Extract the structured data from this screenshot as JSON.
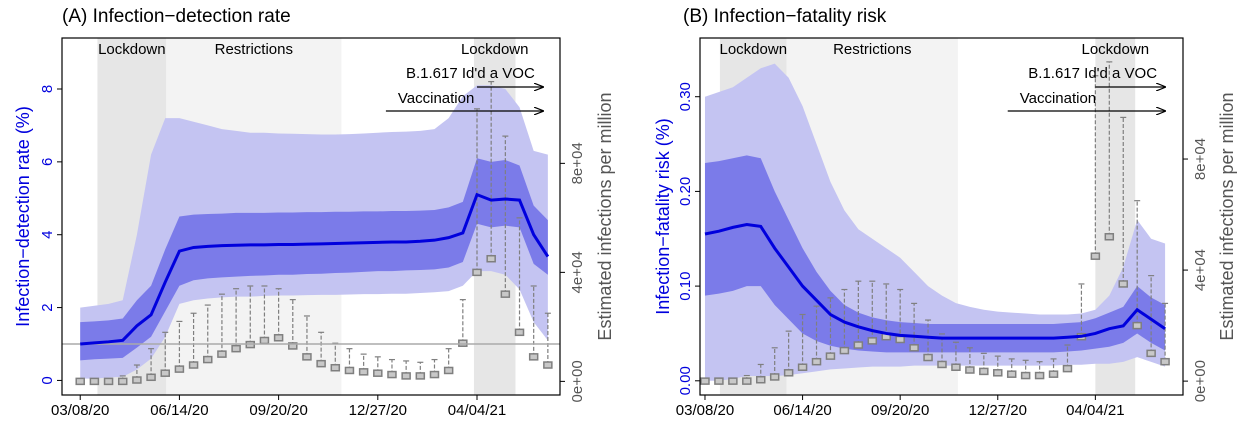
{
  "chart_data": [
    {
      "type": "line",
      "title": "(A) Infection−detection rate",
      "ylabel": "Infection−detection rate (%)",
      "y2label": "Estimated infections per million",
      "xlim": [
        "02/19/20",
        "06/25/21"
      ],
      "xticks": [
        "03/08/20",
        "06/14/20",
        "09/20/20",
        "12/27/20",
        "04/04/21"
      ],
      "ylim": [
        -0.4,
        9.4
      ],
      "yticks": [
        0,
        2,
        4,
        6,
        8
      ],
      "y2lim": [
        -5000,
        126000
      ],
      "y2ticks": [
        {
          "value": 0,
          "label": "0e+00"
        },
        {
          "value": 40000,
          "label": "4e+04"
        },
        {
          "value": 80000,
          "label": "8e+04"
        }
      ],
      "reference_line": 1,
      "periods": [
        {
          "label": "Lockdown",
          "start": "03/25/20",
          "end": "06/01/20",
          "shade": "#e6e6e6"
        },
        {
          "label": "Restrictions",
          "start": "06/01/20",
          "end": "11/21/20",
          "shade": "#f3f3f3"
        },
        {
          "label": "Lockdown",
          "start": "04/01/21",
          "end": "05/12/21",
          "shade": "#e6e6e6"
        }
      ],
      "arrows": [
        {
          "label": "B.1.617 Id'd a VOC",
          "start": "04/04/21",
          "end": "06/08/21"
        },
        {
          "label": "Vaccination",
          "start": "01/04/21",
          "end": "06/08/21"
        }
      ],
      "x": [
        "03/08/20",
        "03/22/20",
        "04/05/20",
        "04/19/20",
        "05/03/20",
        "05/17/20",
        "05/31/20",
        "06/14/20",
        "06/28/20",
        "07/12/20",
        "07/26/20",
        "08/09/20",
        "08/23/20",
        "09/06/20",
        "09/20/20",
        "10/04/20",
        "10/18/20",
        "11/01/20",
        "11/15/20",
        "11/29/20",
        "12/13/20",
        "12/27/20",
        "01/10/21",
        "01/24/21",
        "02/07/21",
        "02/21/21",
        "03/07/21",
        "03/21/21",
        "04/04/21",
        "04/18/21",
        "05/02/21",
        "05/16/21",
        "05/30/21",
        "06/13/21"
      ],
      "bands": [
        {
          "color": "#c4c4f2",
          "lower": [
            0.05,
            0.05,
            0.08,
            0.1,
            0.3,
            0.6,
            1.2,
            2.1,
            2.2,
            2.25,
            2.28,
            2.3,
            2.3,
            2.32,
            2.33,
            2.33,
            2.34,
            2.35,
            2.35,
            2.36,
            2.37,
            2.37,
            2.38,
            2.38,
            2.4,
            2.42,
            2.45,
            2.6,
            3.0,
            3.0,
            2.9,
            2.5,
            1.6,
            1.1
          ],
          "upper": [
            2.0,
            2.05,
            2.1,
            2.2,
            4.0,
            6.2,
            7.2,
            7.2,
            7.1,
            7.0,
            6.9,
            6.85,
            6.8,
            6.8,
            6.78,
            6.77,
            6.76,
            6.75,
            6.75,
            6.76,
            6.78,
            6.8,
            6.82,
            6.83,
            6.85,
            6.9,
            7.2,
            7.8,
            8.1,
            8.1,
            8.0,
            7.5,
            6.3,
            6.2
          ]
        },
        {
          "color": "#7b7be9",
          "lower": [
            0.55,
            0.58,
            0.6,
            0.62,
            0.9,
            1.2,
            1.9,
            2.6,
            2.75,
            2.8,
            2.83,
            2.85,
            2.87,
            2.88,
            2.9,
            2.9,
            2.92,
            2.93,
            2.95,
            2.96,
            2.98,
            3.0,
            3.0,
            3.02,
            3.03,
            3.05,
            3.1,
            3.25,
            4.3,
            4.2,
            4.25,
            4.2,
            3.2,
            2.9
          ],
          "upper": [
            1.6,
            1.62,
            1.65,
            1.7,
            2.2,
            2.6,
            3.6,
            4.5,
            4.55,
            4.57,
            4.58,
            4.6,
            4.6,
            4.6,
            4.61,
            4.61,
            4.62,
            4.62,
            4.63,
            4.63,
            4.64,
            4.64,
            4.65,
            4.65,
            4.66,
            4.68,
            4.75,
            4.9,
            6.1,
            6.0,
            6.05,
            5.9,
            4.8,
            4.4
          ]
        }
      ],
      "series": [
        {
          "color": "#0000dd",
          "values": [
            1.0,
            1.03,
            1.06,
            1.1,
            1.5,
            1.8,
            2.7,
            3.55,
            3.65,
            3.68,
            3.7,
            3.71,
            3.72,
            3.72,
            3.73,
            3.73,
            3.74,
            3.75,
            3.76,
            3.77,
            3.78,
            3.79,
            3.8,
            3.8,
            3.82,
            3.85,
            3.92,
            4.05,
            5.1,
            4.95,
            4.98,
            4.95,
            4.0,
            3.4
          ]
        }
      ],
      "boxes": {
        "axis": "y2",
        "color": "#7f7f7f",
        "median": [
          0,
          0,
          0,
          0,
          500,
          1500,
          3000,
          4500,
          6000,
          8000,
          10000,
          12000,
          13500,
          15000,
          16000,
          13000,
          9000,
          6500,
          5000,
          4000,
          3500,
          3000,
          2500,
          2000,
          2000,
          2500,
          4000,
          14000,
          40000,
          45000,
          32000,
          18000,
          9000,
          6000
        ],
        "upper": [
          0,
          200,
          600,
          2000,
          6000,
          12000,
          18000,
          22000,
          25000,
          28000,
          32000,
          34000,
          35000,
          35000,
          34000,
          30000,
          24000,
          18000,
          14000,
          12000,
          10000,
          9000,
          8000,
          7500,
          7000,
          8000,
          12000,
          30000,
          100000,
          110000,
          90000,
          60000,
          35000,
          25000
        ]
      }
    },
    {
      "type": "line",
      "title": "(B) Infection−fatality risk",
      "ylabel": "Infection−fatality risk (%)",
      "y2label": "Estimated infections per million",
      "xlim": [
        "03/03/20",
        "07/01/21"
      ],
      "xticks": [
        "03/08/20",
        "06/14/20",
        "09/20/20",
        "12/27/20",
        "04/04/21"
      ],
      "ylim": [
        -0.015,
        0.362
      ],
      "yticks": [
        {
          "value": 0,
          "label": "0.00"
        },
        {
          "value": 0.1,
          "label": "0.10"
        },
        {
          "value": 0.2,
          "label": "0.20"
        },
        {
          "value": 0.3,
          "label": "0.30"
        }
      ],
      "y2lim": [
        -5000,
        123600
      ],
      "y2ticks": [
        {
          "value": 0,
          "label": "0e+00"
        },
        {
          "value": 40000,
          "label": "4e+04"
        },
        {
          "value": 80000,
          "label": "8e+04"
        }
      ],
      "periods": [
        {
          "label": "Lockdown",
          "start": "03/23/20",
          "end": "05/29/20",
          "shade": "#e6e6e6"
        },
        {
          "label": "Restrictions",
          "start": "05/29/20",
          "end": "11/17/20",
          "shade": "#f3f3f3"
        },
        {
          "label": "Lockdown",
          "start": "04/04/21",
          "end": "05/14/21",
          "shade": "#e6e6e6"
        }
      ],
      "arrows": [
        {
          "label": "B.1.617 Id'd a VOC",
          "start": "04/04/21",
          "end": "06/13/21"
        },
        {
          "label": "Vaccination",
          "start": "01/06/21",
          "end": "06/13/21"
        }
      ],
      "x": [
        "03/08/20",
        "03/22/20",
        "04/05/20",
        "04/19/20",
        "05/03/20",
        "05/17/20",
        "05/31/20",
        "06/14/20",
        "06/28/20",
        "07/12/20",
        "07/26/20",
        "08/09/20",
        "08/23/20",
        "09/06/20",
        "09/20/20",
        "10/04/20",
        "10/18/20",
        "11/01/20",
        "11/15/20",
        "11/29/20",
        "12/13/20",
        "12/27/20",
        "01/10/21",
        "01/24/21",
        "02/07/21",
        "02/21/21",
        "03/07/21",
        "03/21/21",
        "04/04/21",
        "04/18/21",
        "05/02/21",
        "05/16/21",
        "05/30/21",
        "06/13/21"
      ],
      "bands": [
        {
          "color": "#c4c4f2",
          "lower": [
            0.0,
            0.0,
            0.002,
            0.005,
            0.005,
            0.005,
            0.006,
            0.008,
            0.01,
            0.012,
            0.013,
            0.014,
            0.015,
            0.015,
            0.015,
            0.016,
            0.016,
            0.016,
            0.016,
            0.016,
            0.016,
            0.016,
            0.016,
            0.016,
            0.016,
            0.016,
            0.017,
            0.017,
            0.018,
            0.018,
            0.02,
            0.025,
            0.02,
            0.015
          ],
          "upper": [
            0.3,
            0.305,
            0.31,
            0.32,
            0.33,
            0.335,
            0.32,
            0.29,
            0.25,
            0.21,
            0.18,
            0.16,
            0.15,
            0.14,
            0.13,
            0.115,
            0.1,
            0.09,
            0.082,
            0.078,
            0.075,
            0.073,
            0.072,
            0.071,
            0.07,
            0.07,
            0.07,
            0.071,
            0.075,
            0.09,
            0.12,
            0.17,
            0.15,
            0.145
          ]
        },
        {
          "color": "#7b7be9",
          "lower": [
            0.09,
            0.092,
            0.095,
            0.1,
            0.1,
            0.08,
            0.065,
            0.05,
            0.042,
            0.037,
            0.034,
            0.032,
            0.031,
            0.03,
            0.03,
            0.03,
            0.03,
            0.03,
            0.03,
            0.03,
            0.03,
            0.03,
            0.03,
            0.03,
            0.03,
            0.03,
            0.031,
            0.032,
            0.034,
            0.036,
            0.04,
            0.05,
            0.04,
            0.032
          ],
          "upper": [
            0.23,
            0.232,
            0.235,
            0.238,
            0.235,
            0.2,
            0.17,
            0.14,
            0.115,
            0.095,
            0.08,
            0.072,
            0.067,
            0.064,
            0.062,
            0.061,
            0.06,
            0.06,
            0.06,
            0.06,
            0.06,
            0.06,
            0.06,
            0.06,
            0.06,
            0.06,
            0.061,
            0.062,
            0.066,
            0.072,
            0.078,
            0.1,
            0.088,
            0.08
          ]
        }
      ],
      "series": [
        {
          "color": "#0000dd",
          "values": [
            0.155,
            0.158,
            0.162,
            0.165,
            0.163,
            0.14,
            0.12,
            0.1,
            0.085,
            0.07,
            0.062,
            0.057,
            0.053,
            0.05,
            0.048,
            0.047,
            0.046,
            0.045,
            0.045,
            0.045,
            0.045,
            0.045,
            0.045,
            0.045,
            0.045,
            0.045,
            0.046,
            0.047,
            0.05,
            0.055,
            0.058,
            0.075,
            0.065,
            0.055
          ]
        }
      ],
      "boxes": {
        "axis": "y2",
        "color": "#7f7f7f",
        "median": [
          0,
          0,
          0,
          0,
          500,
          1500,
          3000,
          5000,
          7000,
          9000,
          11000,
          13000,
          14500,
          16000,
          15000,
          12000,
          8500,
          6000,
          5000,
          4000,
          3500,
          3000,
          2500,
          2000,
          2000,
          2500,
          4500,
          16000,
          45000,
          52000,
          35000,
          20000,
          10000,
          7000
        ],
        "upper": [
          0,
          200,
          600,
          2000,
          6000,
          12000,
          18000,
          24000,
          27000,
          30000,
          33000,
          36000,
          36000,
          35000,
          33000,
          28000,
          22000,
          17000,
          14000,
          12000,
          10000,
          9000,
          8000,
          7500,
          7000,
          8000,
          13000,
          35000,
          110000,
          115000,
          95000,
          65000,
          38000,
          28000
        ]
      }
    }
  ]
}
